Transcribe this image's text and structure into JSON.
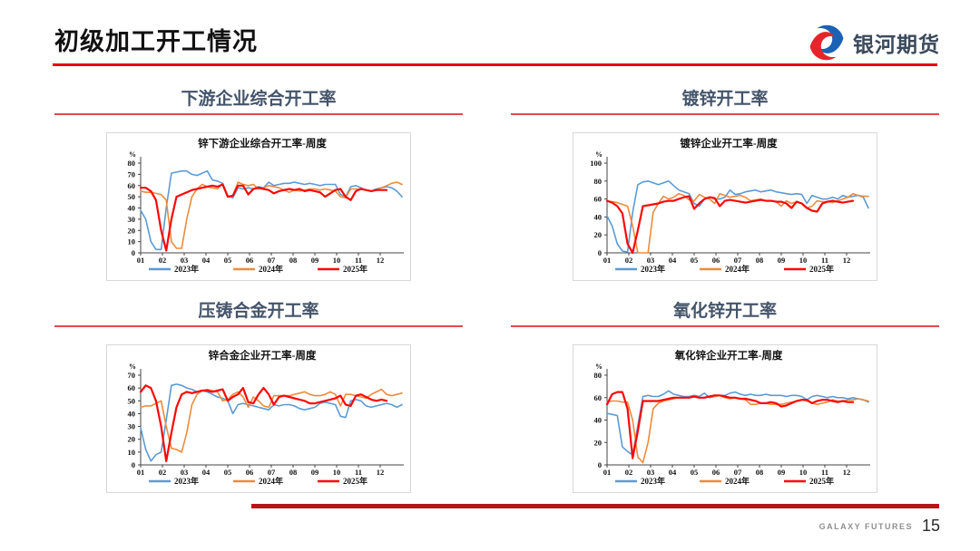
{
  "header": {
    "title": "初级加工开工情况",
    "logo_text": "银河期货"
  },
  "footer": {
    "brand": "GALAXY FUTURES",
    "page_number": "15"
  },
  "colors": {
    "accent_red": "#e60012",
    "heading": "#44546a",
    "panel_rule": "#e14b4b",
    "bottom_bar": "#b81418",
    "s2023": "#5b9bd5",
    "s2024": "#ed8b3c",
    "s2025": "#fe0606"
  },
  "chart_data": [
    {
      "type": "line",
      "heading": "下游企业综合开工率",
      "title": "锌下游企业综合开工率-周度",
      "ylabel": "%",
      "ylim": [
        0,
        80
      ],
      "ytick_step": 10,
      "x_axis_labels": [
        "01",
        "02",
        "03",
        "04",
        "05",
        "06",
        "07",
        "08",
        "09",
        "10",
        "11",
        "12"
      ],
      "legend_position": "bottom",
      "grid": false,
      "series": [
        {
          "name": "2023年",
          "color": "#5b9bd5",
          "width": 1.6,
          "values": [
            38,
            30,
            10,
            3,
            3,
            40,
            71,
            72,
            73,
            73,
            70,
            69,
            71,
            73,
            65,
            64,
            62,
            51,
            49,
            58,
            57,
            58,
            57,
            59,
            58,
            63,
            60,
            61,
            62,
            62,
            63,
            62,
            61,
            62,
            61,
            60,
            61,
            61,
            61,
            52,
            50,
            59,
            60,
            58,
            56,
            55,
            57,
            58,
            59,
            58,
            55,
            50
          ]
        },
        {
          "name": "2024年",
          "color": "#ed8b3c",
          "width": 1.6,
          "values": [
            55,
            54,
            54,
            53,
            52,
            47,
            10,
            4,
            4,
            30,
            50,
            57,
            61,
            59,
            58,
            57,
            62,
            50,
            51,
            63,
            61,
            60,
            61,
            57,
            58,
            60,
            59,
            58,
            56,
            54,
            56,
            55,
            56,
            57,
            57,
            56,
            57,
            56,
            55,
            50,
            49,
            57,
            57,
            57,
            56,
            55,
            56,
            58,
            60,
            62,
            63,
            61
          ]
        },
        {
          "name": "2025年",
          "color": "#fe0606",
          "width": 2.2,
          "values": [
            58,
            58,
            55,
            47,
            20,
            2,
            30,
            50,
            52,
            54,
            56,
            57,
            58,
            59,
            60,
            59,
            61,
            50,
            51,
            60,
            60,
            52,
            57,
            58,
            57,
            56,
            53,
            55,
            56,
            57,
            56,
            57,
            55,
            56,
            55,
            54,
            50,
            53,
            56,
            57,
            50,
            47,
            55,
            57,
            56,
            55,
            56,
            56,
            56
          ]
        }
      ]
    },
    {
      "type": "line",
      "heading": "镀锌开工率",
      "title": "镀锌企业开工率-周度",
      "ylabel": "%",
      "ylim": [
        0,
        100
      ],
      "ytick_step": 20,
      "x_axis_labels": [
        "01",
        "02",
        "03",
        "04",
        "05",
        "06",
        "07",
        "08",
        "09",
        "10",
        "11",
        "12"
      ],
      "legend_position": "bottom",
      "grid": false,
      "series": [
        {
          "name": "2023年",
          "color": "#5b9bd5",
          "width": 1.6,
          "values": [
            41,
            30,
            10,
            2,
            1,
            45,
            76,
            79,
            80,
            78,
            76,
            78,
            80,
            75,
            70,
            68,
            66,
            55,
            52,
            60,
            62,
            60,
            60,
            62,
            70,
            65,
            66,
            68,
            69,
            70,
            68,
            69,
            70,
            68,
            67,
            66,
            65,
            66,
            65,
            55,
            64,
            62,
            60,
            60,
            62,
            60,
            64,
            62,
            63,
            64,
            62,
            50
          ]
        },
        {
          "name": "2024年",
          "color": "#ed8b3c",
          "width": 1.6,
          "values": [
            58,
            57,
            56,
            54,
            52,
            30,
            0,
            0,
            0,
            45,
            55,
            63,
            60,
            62,
            66,
            64,
            59,
            58,
            65,
            62,
            60,
            55,
            66,
            64,
            62,
            63,
            64,
            62,
            58,
            59,
            60,
            58,
            58,
            57,
            52,
            58,
            55,
            57,
            55,
            50,
            52,
            58,
            57,
            57,
            56,
            58,
            60,
            62,
            66,
            64,
            63,
            63
          ]
        },
        {
          "name": "2025年",
          "color": "#fe0606",
          "width": 2.2,
          "values": [
            58,
            56,
            52,
            44,
            10,
            0,
            25,
            52,
            53,
            54,
            55,
            57,
            58,
            58,
            60,
            62,
            63,
            49,
            55,
            60,
            62,
            61,
            52,
            58,
            59,
            58,
            57,
            56,
            57,
            58,
            59,
            58,
            58,
            57,
            57,
            55,
            50,
            57,
            55,
            50,
            47,
            46,
            55,
            57,
            58,
            57,
            56,
            57,
            58
          ]
        }
      ]
    },
    {
      "type": "line",
      "heading": "压铸合金开工率",
      "title": "锌合金企业开工率-周度",
      "ylabel": "%",
      "ylim": [
        0,
        70
      ],
      "ytick_step": 10,
      "x_axis_labels": [
        "01",
        "02",
        "03",
        "04",
        "05",
        "06",
        "07",
        "08",
        "09",
        "10",
        "11",
        "12"
      ],
      "legend_position": "bottom",
      "grid": false,
      "series": [
        {
          "name": "2023年",
          "color": "#5b9bd5",
          "width": 1.6,
          "values": [
            29,
            12,
            3,
            8,
            10,
            35,
            62,
            63,
            62,
            60,
            59,
            57,
            58,
            57,
            55,
            53,
            52,
            50,
            40,
            47,
            48,
            47,
            46,
            45,
            44,
            43,
            47,
            46,
            47,
            47,
            46,
            44,
            43,
            44,
            45,
            48,
            49,
            48,
            47,
            38,
            37,
            50,
            51,
            50,
            46,
            45,
            46,
            47,
            48,
            47,
            45,
            47
          ]
        },
        {
          "name": "2024年",
          "color": "#ed8b3c",
          "width": 1.6,
          "values": [
            45,
            46,
            46,
            48,
            50,
            30,
            13,
            12,
            10,
            25,
            47,
            55,
            58,
            59,
            58,
            57,
            50,
            51,
            55,
            57,
            53,
            45,
            53,
            50,
            46,
            45,
            54,
            54,
            54,
            54,
            55,
            56,
            57,
            55,
            54,
            54,
            55,
            57,
            55,
            46,
            55,
            55,
            54,
            53,
            52,
            55,
            57,
            59,
            55,
            54,
            55,
            56
          ]
        },
        {
          "name": "2025年",
          "color": "#fe0606",
          "width": 2.2,
          "values": [
            57,
            62,
            60,
            50,
            30,
            3,
            25,
            45,
            55,
            57,
            56,
            57,
            58,
            58,
            57,
            58,
            59,
            50,
            53,
            55,
            60,
            49,
            48,
            55,
            60,
            55,
            47,
            53,
            54,
            53,
            52,
            51,
            50,
            48,
            48,
            49,
            50,
            51,
            52,
            54,
            47,
            46,
            54,
            55,
            53,
            51,
            50,
            51,
            50
          ]
        }
      ]
    },
    {
      "type": "line",
      "heading": "氧化锌开工率",
      "title": "氧化锌企业开工率-周度",
      "ylabel": "%",
      "ylim": [
        0,
        80
      ],
      "ytick_step": 20,
      "x_axis_labels": [
        "01",
        "02",
        "03",
        "04",
        "05",
        "06",
        "07",
        "08",
        "09",
        "10",
        "11",
        "12"
      ],
      "legend_position": "bottom",
      "grid": false,
      "series": [
        {
          "name": "2023年",
          "color": "#5b9bd5",
          "width": 1.6,
          "values": [
            46,
            45,
            44,
            16,
            12,
            9,
            35,
            61,
            62,
            61,
            61,
            63,
            66,
            63,
            62,
            61,
            61,
            62,
            61,
            64,
            60,
            61,
            62,
            62,
            64,
            65,
            63,
            62,
            63,
            62,
            62,
            63,
            62,
            62,
            62,
            61,
            62,
            62,
            61,
            58,
            61,
            62,
            61,
            60,
            61,
            60,
            60,
            59,
            60,
            59,
            58,
            56
          ]
        },
        {
          "name": "2024年",
          "color": "#ed8b3c",
          "width": 1.6,
          "values": [
            56,
            57,
            57,
            56,
            56,
            40,
            7,
            2,
            20,
            50,
            55,
            57,
            58,
            59,
            60,
            60,
            60,
            61,
            60,
            60,
            61,
            61,
            62,
            60,
            59,
            60,
            59,
            58,
            54,
            54,
            55,
            55,
            54,
            54,
            54,
            55,
            56,
            57,
            58,
            57,
            55,
            54,
            55,
            56,
            58,
            57,
            57,
            58,
            58,
            59,
            58,
            57
          ]
        },
        {
          "name": "2025年",
          "color": "#fe0606",
          "width": 2.2,
          "values": [
            54,
            63,
            65,
            65,
            50,
            6,
            30,
            57,
            57,
            57,
            57,
            58,
            59,
            60,
            60,
            60,
            60,
            61,
            60,
            60,
            61,
            62,
            62,
            61,
            60,
            60,
            59,
            59,
            58,
            57,
            55,
            55,
            56,
            55,
            52,
            53,
            55,
            57,
            58,
            58,
            55,
            57,
            58,
            58,
            57,
            56,
            57,
            56,
            56
          ]
        }
      ]
    }
  ]
}
